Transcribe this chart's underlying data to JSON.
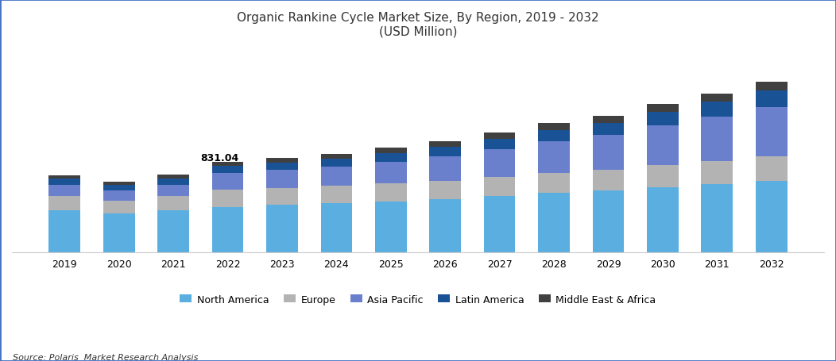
{
  "years": [
    2019,
    2020,
    2021,
    2022,
    2023,
    2024,
    2025,
    2026,
    2027,
    2028,
    2029,
    2030,
    2031,
    2032
  ],
  "north_america": [
    390,
    355,
    385,
    415,
    435,
    455,
    470,
    490,
    520,
    545,
    570,
    600,
    630,
    660
  ],
  "europe": [
    130,
    120,
    130,
    160,
    158,
    158,
    165,
    170,
    175,
    185,
    185,
    200,
    210,
    225
  ],
  "asia_pacific": [
    100,
    95,
    105,
    155,
    165,
    175,
    200,
    220,
    255,
    290,
    325,
    365,
    405,
    450
  ],
  "latin_america": [
    55,
    50,
    58,
    65,
    68,
    72,
    80,
    88,
    95,
    105,
    112,
    125,
    138,
    150
  ],
  "middle_east_africa": [
    35,
    30,
    34,
    36,
    40,
    45,
    50,
    55,
    58,
    62,
    65,
    70,
    76,
    82
  ],
  "annotation_year": 2022,
  "annotation_text": "831.04",
  "colors": {
    "north_america": "#5aafe0",
    "europe": "#b3b3b3",
    "asia_pacific": "#6b80cc",
    "latin_america": "#1a5296",
    "middle_east_africa": "#404040"
  },
  "title_line1": "Organic Rankine Cycle Market Size, By Region, 2019 - 2032",
  "title_line2": "(USD Million)",
  "legend_labels": [
    "North America",
    "Europe",
    "Asia Pacific",
    "Latin America",
    "Middle East & Africa"
  ],
  "source_text": "Source: Polaris  Market Research Analysis",
  "background_color": "#ffffff",
  "border_color": "#4472c4"
}
